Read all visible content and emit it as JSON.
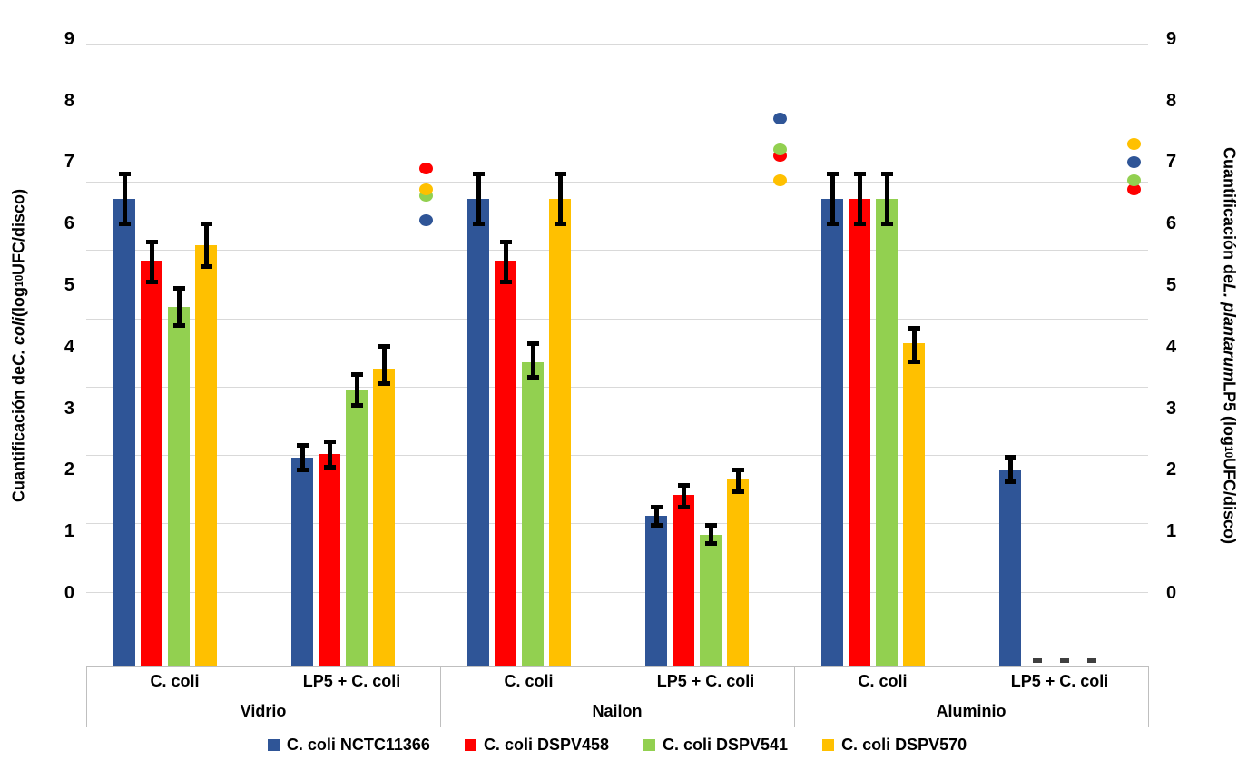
{
  "chart_data": {
    "type": "bar",
    "title": "",
    "axes": {
      "left": {
        "title_parts": [
          {
            "text": "Cuantificación de "
          },
          {
            "text": "C. coli",
            "italic": true
          },
          {
            "text": " (log"
          },
          {
            "text": "10",
            "sub": true
          },
          {
            "text": "UFC/disco)"
          }
        ],
        "ticks": [
          0,
          1,
          2,
          3,
          4,
          5,
          6,
          7,
          8,
          9
        ]
      },
      "right": {
        "title_parts": [
          {
            "text": "Cuantificación de "
          },
          {
            "text": "L. plantarum",
            "italic": true
          },
          {
            "text": " LP5 (log"
          },
          {
            "text": "10",
            "sub": true
          },
          {
            "text": "UFC/disco)"
          }
        ],
        "ticks": [
          0,
          1,
          2,
          3,
          4,
          5,
          6,
          7,
          8,
          9
        ]
      }
    },
    "series": [
      {
        "name": "C. coli NCTC11366",
        "color": "#2F5597"
      },
      {
        "name": "C. coli DSPV458",
        "color": "#FF0000"
      },
      {
        "name": "C. coli DSPV541",
        "color": "#92D050"
      },
      {
        "name": "C. coli DSPV570",
        "color": "#FFC000"
      }
    ],
    "groups": [
      {
        "surface": "Vidrio",
        "conditions": [
          {
            "label": "C. coli",
            "bars": [
              {
                "value": 6.4,
                "err_lo": 6.0,
                "err_hi": 6.8
              },
              {
                "value": 5.4,
                "err_lo": 5.05,
                "err_hi": 5.7
              },
              {
                "value": 4.65,
                "err_lo": 4.35,
                "err_hi": 4.95
              },
              {
                "value": 5.65,
                "err_lo": 5.3,
                "err_hi": 6.0
              }
            ]
          },
          {
            "label": "LP5 + C. coli",
            "bars": [
              {
                "value": 2.2,
                "err_lo": 2.0,
                "err_hi": 2.4
              },
              {
                "value": 2.25,
                "err_lo": 2.05,
                "err_hi": 2.45
              },
              {
                "value": 3.3,
                "err_lo": 3.05,
                "err_hi": 3.55
              },
              {
                "value": 3.65,
                "err_lo": 3.4,
                "err_hi": 4.0
              }
            ]
          }
        ],
        "lp5_dots": [
          6.05,
          6.9,
          6.45,
          6.55
        ]
      },
      {
        "surface": "Nailon",
        "conditions": [
          {
            "label": "C. coli",
            "bars": [
              {
                "value": 6.4,
                "err_lo": 6.0,
                "err_hi": 6.8
              },
              {
                "value": 5.4,
                "err_lo": 5.05,
                "err_hi": 5.7
              },
              {
                "value": 3.75,
                "err_lo": 3.5,
                "err_hi": 4.05
              },
              {
                "value": 6.4,
                "err_lo": 6.0,
                "err_hi": 6.8
              }
            ]
          },
          {
            "label": "LP5 + C. coli",
            "bars": [
              {
                "value": 1.25,
                "err_lo": 1.1,
                "err_hi": 1.4
              },
              {
                "value": 1.6,
                "err_lo": 1.4,
                "err_hi": 1.75
              },
              {
                "value": 0.95,
                "err_lo": 0.8,
                "err_hi": 1.1
              },
              {
                "value": 1.85,
                "err_lo": 1.65,
                "err_hi": 2.0
              }
            ]
          }
        ],
        "lp5_dots": [
          7.7,
          7.1,
          7.2,
          6.7
        ]
      },
      {
        "surface": "Aluminio",
        "conditions": [
          {
            "label": "C. coli",
            "bars": [
              {
                "value": 6.4,
                "err_lo": 6.0,
                "err_hi": 6.8
              },
              {
                "value": 6.4,
                "err_lo": 6.0,
                "err_hi": 6.8
              },
              {
                "value": 6.4,
                "err_lo": 6.0,
                "err_hi": 6.8
              },
              {
                "value": 4.05,
                "err_lo": 3.75,
                "err_hi": 4.3
              }
            ]
          },
          {
            "label": "LP5 + C. coli",
            "bars": [
              {
                "value": 2.0,
                "err_lo": 1.8,
                "err_hi": 2.2
              },
              {
                "nd": true
              },
              {
                "nd": true
              },
              {
                "nd": true
              }
            ]
          }
        ],
        "lp5_dots": [
          7.0,
          6.55,
          6.7,
          7.3
        ]
      }
    ],
    "colors": {
      "gridline": "#D9D9D9",
      "axis_line": "#BFBFBF",
      "error_bar": "#000000",
      "nd_stub": "#3F3F3F"
    }
  }
}
